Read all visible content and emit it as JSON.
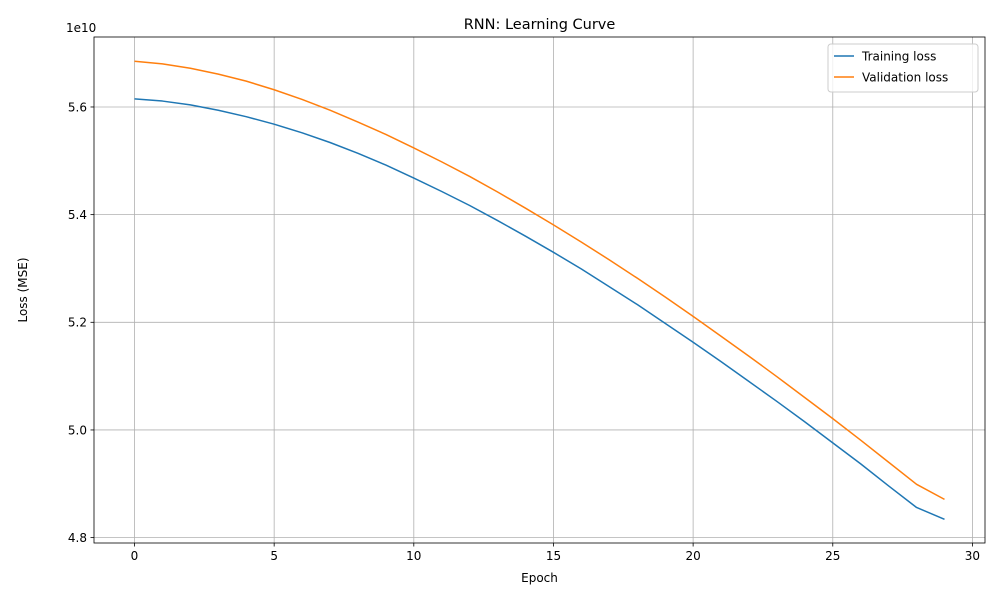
{
  "chart_data": {
    "type": "line",
    "title": "RNN: Learning Curve",
    "xlabel": "Epoch",
    "ylabel": "Loss (MSE)",
    "y_offset_label": "1e10",
    "y_scale": 10000000000,
    "xlim": [
      -1.45,
      30.45
    ],
    "ylim": [
      4.79,
      5.73
    ],
    "x_ticks": [
      0,
      5,
      10,
      15,
      20,
      25,
      30
    ],
    "y_ticks": [
      4.8,
      5.0,
      5.2,
      5.4,
      5.6
    ],
    "x_tick_labels": [
      "0",
      "5",
      "10",
      "15",
      "20",
      "25",
      "30"
    ],
    "y_tick_labels": [
      "4.8",
      "5.0",
      "5.2",
      "5.4",
      "5.6"
    ],
    "grid": true,
    "legend_position": "top-right",
    "x": [
      0,
      1,
      2,
      3,
      4,
      5,
      6,
      7,
      8,
      9,
      10,
      11,
      12,
      13,
      14,
      15,
      16,
      17,
      18,
      19,
      20,
      21,
      22,
      23,
      24,
      25,
      26,
      27,
      28,
      29
    ],
    "series": [
      {
        "name": "Training loss",
        "color": "#1f77b4",
        "values": [
          5.615,
          5.611,
          5.604,
          5.594,
          5.582,
          5.568,
          5.552,
          5.534,
          5.514,
          5.492,
          5.468,
          5.443,
          5.417,
          5.389,
          5.36,
          5.33,
          5.299,
          5.266,
          5.233,
          5.198,
          5.163,
          5.127,
          5.09,
          5.053,
          5.015,
          4.976,
          4.937,
          4.896,
          4.856,
          4.834
        ]
      },
      {
        "name": "Validation loss",
        "color": "#ff7f0e",
        "values": [
          5.685,
          5.68,
          5.672,
          5.661,
          5.648,
          5.632,
          5.614,
          5.594,
          5.572,
          5.549,
          5.524,
          5.498,
          5.471,
          5.442,
          5.412,
          5.381,
          5.349,
          5.316,
          5.282,
          5.247,
          5.211,
          5.174,
          5.137,
          5.099,
          5.06,
          5.021,
          4.981,
          4.94,
          4.899,
          4.871
        ]
      }
    ]
  }
}
